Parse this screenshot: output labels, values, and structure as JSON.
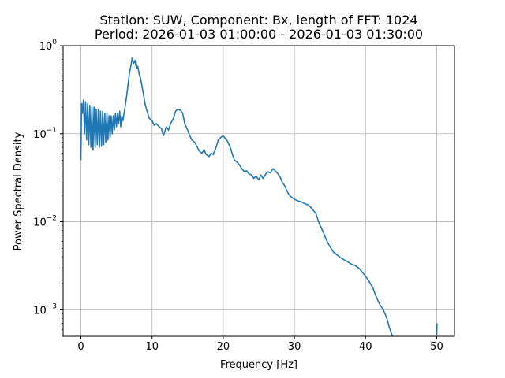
{
  "chart_data": {
    "type": "line",
    "title": "Station: SUW, Component: Bx, length of FFT: 1024",
    "subtitle": "Period: 2026-01-03 01:00:00 - 2026-01-03 01:30:00",
    "xlabel": "Frequency [Hz]",
    "ylabel": "Power Spectral Density",
    "xlim": [
      -2.5,
      52.5
    ],
    "ylim": [
      0.0005,
      1
    ],
    "yscale": "log",
    "grid": true,
    "line_color": "#1f77b4",
    "x_ticks": [
      {
        "value": 0,
        "label": "0"
      },
      {
        "value": 10,
        "label": "10"
      },
      {
        "value": 20,
        "label": "20"
      },
      {
        "value": 30,
        "label": "30"
      },
      {
        "value": 40,
        "label": "40"
      },
      {
        "value": 50,
        "label": "50"
      }
    ],
    "y_ticks": [
      {
        "value": 1,
        "base": "10",
        "exp": "0"
      },
      {
        "value": 0.1,
        "base": "10",
        "exp": "−1"
      },
      {
        "value": 0.01,
        "base": "10",
        "exp": "−2"
      },
      {
        "value": 0.001,
        "base": "10",
        "exp": "−3"
      }
    ],
    "series": [
      {
        "x": [
          0,
          0.1,
          0.2,
          0.35,
          0.5,
          0.65,
          0.8,
          0.95,
          1.1,
          1.25,
          1.4,
          1.55,
          1.7,
          1.85,
          2.0,
          2.15,
          2.3,
          2.45,
          2.6,
          2.75,
          2.9,
          3.05,
          3.2,
          3.35,
          3.5,
          3.65,
          3.8,
          3.95,
          4.1,
          4.25,
          4.4,
          4.55,
          4.7,
          4.85,
          5.0,
          5.15,
          5.3,
          5.45,
          5.6,
          5.75,
          5.9,
          6.0,
          6.2,
          6.4,
          6.6,
          6.8,
          7.0,
          7.2,
          7.4,
          7.6,
          7.8,
          8.0,
          8.2,
          8.4,
          8.6,
          8.8,
          9.0,
          9.3,
          9.6,
          10.0,
          10.3,
          10.6,
          11.0,
          11.3,
          11.6,
          12.0,
          12.3,
          12.6,
          13.0,
          13.3,
          13.6,
          14.0,
          14.3,
          14.6,
          15.0,
          15.3,
          15.6,
          16.0,
          16.3,
          16.6,
          17.0,
          17.3,
          17.6,
          18.0,
          18.3,
          18.6,
          19.0,
          19.3,
          19.6,
          20.0,
          20.3,
          20.6,
          21.0,
          21.3,
          21.6,
          22.0,
          22.3,
          22.6,
          23.0,
          23.3,
          23.6,
          24.0,
          24.3,
          24.6,
          25.0,
          25.3,
          25.6,
          26.0,
          26.3,
          26.6,
          27.0,
          27.3,
          27.6,
          28.0,
          28.3,
          28.6,
          29.0,
          29.3,
          29.6,
          30.0,
          30.5,
          31.0,
          31.5,
          32.0,
          32.5,
          33.0,
          33.5,
          34.0,
          34.5,
          35.0,
          35.5,
          36.0,
          36.5,
          37.0,
          37.5,
          38.0,
          38.5,
          39.0,
          39.5,
          40.0,
          40.5,
          41.0,
          41.5,
          42.0,
          42.5,
          43.0,
          43.3,
          43.6,
          43.8,
          50.0,
          50.05
        ],
        "y": [
          0.05,
          0.22,
          0.17,
          0.24,
          0.1,
          0.23,
          0.085,
          0.22,
          0.075,
          0.21,
          0.07,
          0.2,
          0.065,
          0.2,
          0.07,
          0.19,
          0.075,
          0.19,
          0.07,
          0.18,
          0.072,
          0.18,
          0.075,
          0.17,
          0.08,
          0.17,
          0.085,
          0.16,
          0.09,
          0.16,
          0.1,
          0.16,
          0.11,
          0.17,
          0.12,
          0.17,
          0.13,
          0.18,
          0.12,
          0.16,
          0.14,
          0.16,
          0.2,
          0.26,
          0.35,
          0.48,
          0.58,
          0.72,
          0.63,
          0.68,
          0.55,
          0.58,
          0.47,
          0.42,
          0.34,
          0.28,
          0.22,
          0.18,
          0.15,
          0.14,
          0.125,
          0.13,
          0.12,
          0.115,
          0.095,
          0.12,
          0.11,
          0.13,
          0.15,
          0.18,
          0.19,
          0.185,
          0.17,
          0.13,
          0.11,
          0.095,
          0.085,
          0.08,
          0.072,
          0.064,
          0.06,
          0.066,
          0.058,
          0.055,
          0.06,
          0.058,
          0.07,
          0.085,
          0.09,
          0.095,
          0.088,
          0.082,
          0.07,
          0.058,
          0.05,
          0.047,
          0.044,
          0.04,
          0.037,
          0.038,
          0.035,
          0.034,
          0.031,
          0.033,
          0.03,
          0.034,
          0.031,
          0.035,
          0.037,
          0.036,
          0.04,
          0.038,
          0.036,
          0.032,
          0.028,
          0.026,
          0.022,
          0.02,
          0.019,
          0.018,
          0.0172,
          0.0168,
          0.016,
          0.0155,
          0.014,
          0.0125,
          0.0095,
          0.0078,
          0.0062,
          0.0052,
          0.0045,
          0.0042,
          0.0039,
          0.0037,
          0.0035,
          0.0033,
          0.0032,
          0.003,
          0.0027,
          0.0024,
          0.0021,
          0.0018,
          0.0014,
          0.00115,
          0.001,
          0.0008,
          0.00065,
          0.00055,
          0.0005,
          0.00052,
          0.0007
        ]
      }
    ]
  }
}
